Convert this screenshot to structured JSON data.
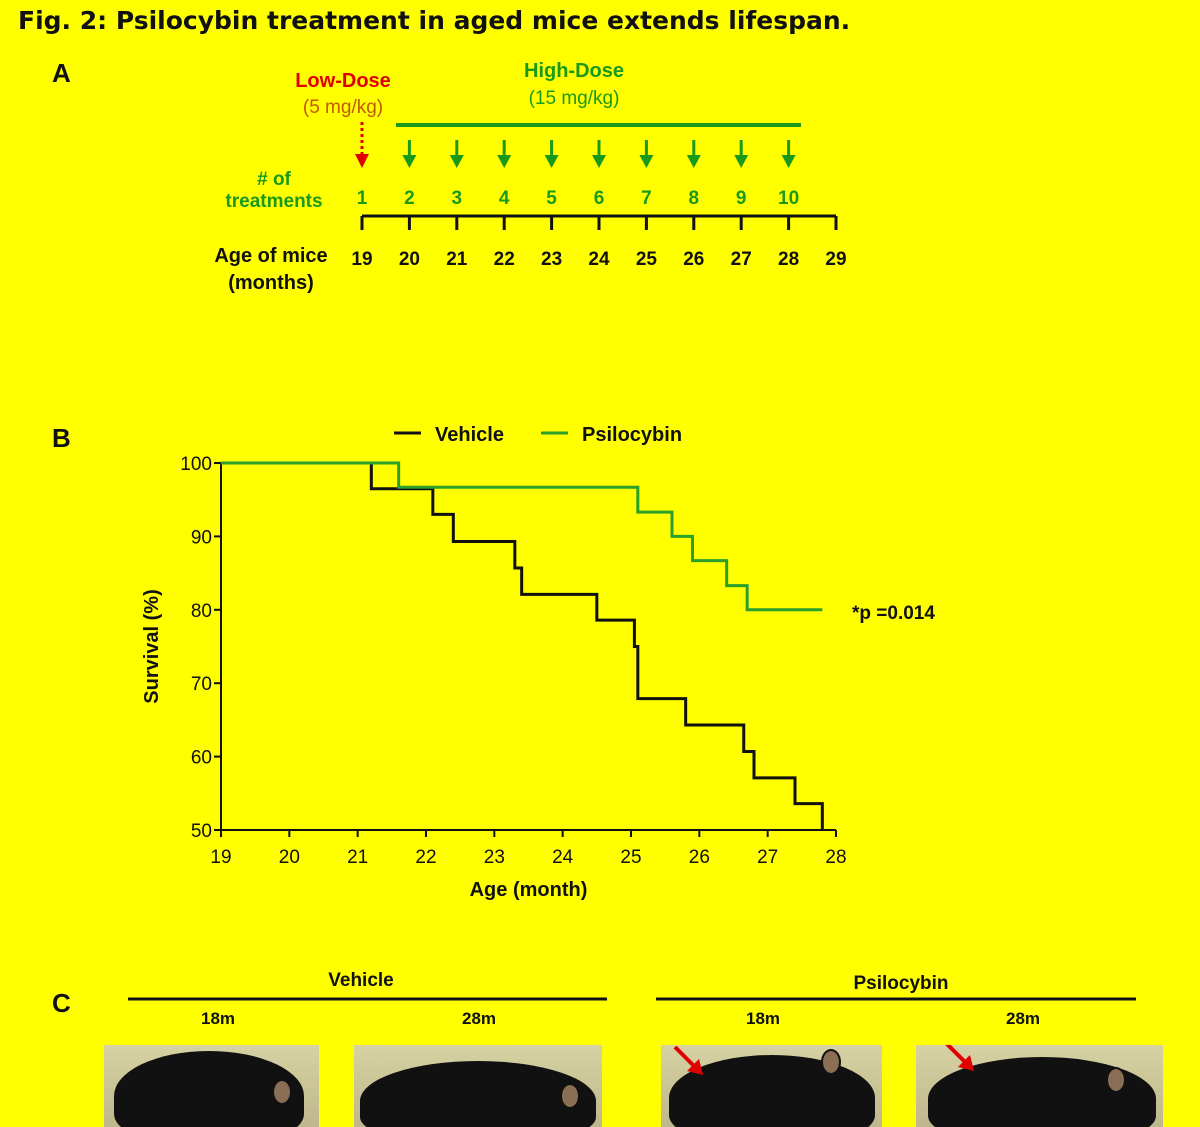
{
  "figure": {
    "title": "Fig. 2: Psilocybin treatment in aged mice extends lifespan."
  },
  "panel_a": {
    "letter": "A",
    "low_dose_label": "Low-Dose",
    "low_dose_amount": "(5 mg/kg)",
    "high_dose_label": "High-Dose",
    "high_dose_amount": "(15 mg/kg)",
    "treatments_label_line1": "# of",
    "treatments_label_line2": "treatments",
    "treatment_numbers": [
      "1",
      "2",
      "3",
      "4",
      "5",
      "6",
      "7",
      "8",
      "9",
      "10"
    ],
    "age_label_line1": "Age of mice",
    "age_label_line2": "(months)",
    "ages": [
      "19",
      "20",
      "21",
      "22",
      "23",
      "24",
      "25",
      "26",
      "27",
      "28",
      "29"
    ],
    "colors": {
      "low": "#e00000",
      "low_amount": "#c05a00",
      "high": "#1a9a1a"
    }
  },
  "panel_b": {
    "letter": "B",
    "p_value_text": "*p =0.014"
  },
  "chart_data": {
    "type": "line",
    "title": "",
    "xlabel": "Age (month)",
    "ylabel": "Survival (%)",
    "xlim": [
      19,
      28
    ],
    "ylim": [
      50,
      100
    ],
    "x_ticks": [
      19,
      20,
      21,
      22,
      23,
      24,
      25,
      26,
      27,
      28
    ],
    "y_ticks": [
      50,
      60,
      70,
      80,
      90,
      100
    ],
    "grid": false,
    "legend_position": "top",
    "step": true,
    "series": [
      {
        "name": "Vehicle",
        "color": "#111111",
        "points": [
          [
            19,
            100
          ],
          [
            21.2,
            96.5
          ],
          [
            22.1,
            93
          ],
          [
            22.4,
            89.3
          ],
          [
            23.3,
            85.7
          ],
          [
            23.4,
            82.1
          ],
          [
            24.5,
            78.6
          ],
          [
            25.05,
            75
          ],
          [
            25.1,
            67.9
          ],
          [
            25.8,
            64.3
          ],
          [
            26.65,
            60.7
          ],
          [
            26.8,
            57.1
          ],
          [
            27.4,
            53.6
          ],
          [
            27.8,
            50
          ]
        ]
      },
      {
        "name": "Psilocybin",
        "color": "#2aa02a",
        "points": [
          [
            19,
            100
          ],
          [
            21.6,
            96.7
          ],
          [
            25.1,
            93.3
          ],
          [
            25.6,
            90
          ],
          [
            25.9,
            86.7
          ],
          [
            26.4,
            83.3
          ],
          [
            26.7,
            80
          ],
          [
            27.8,
            80
          ]
        ]
      }
    ]
  },
  "panel_c": {
    "letter": "C",
    "vehicle_label": "Vehicle",
    "psilocybin_label": "Psilocybin",
    "ages": [
      "18m",
      "28m",
      "18m",
      "28m"
    ]
  }
}
